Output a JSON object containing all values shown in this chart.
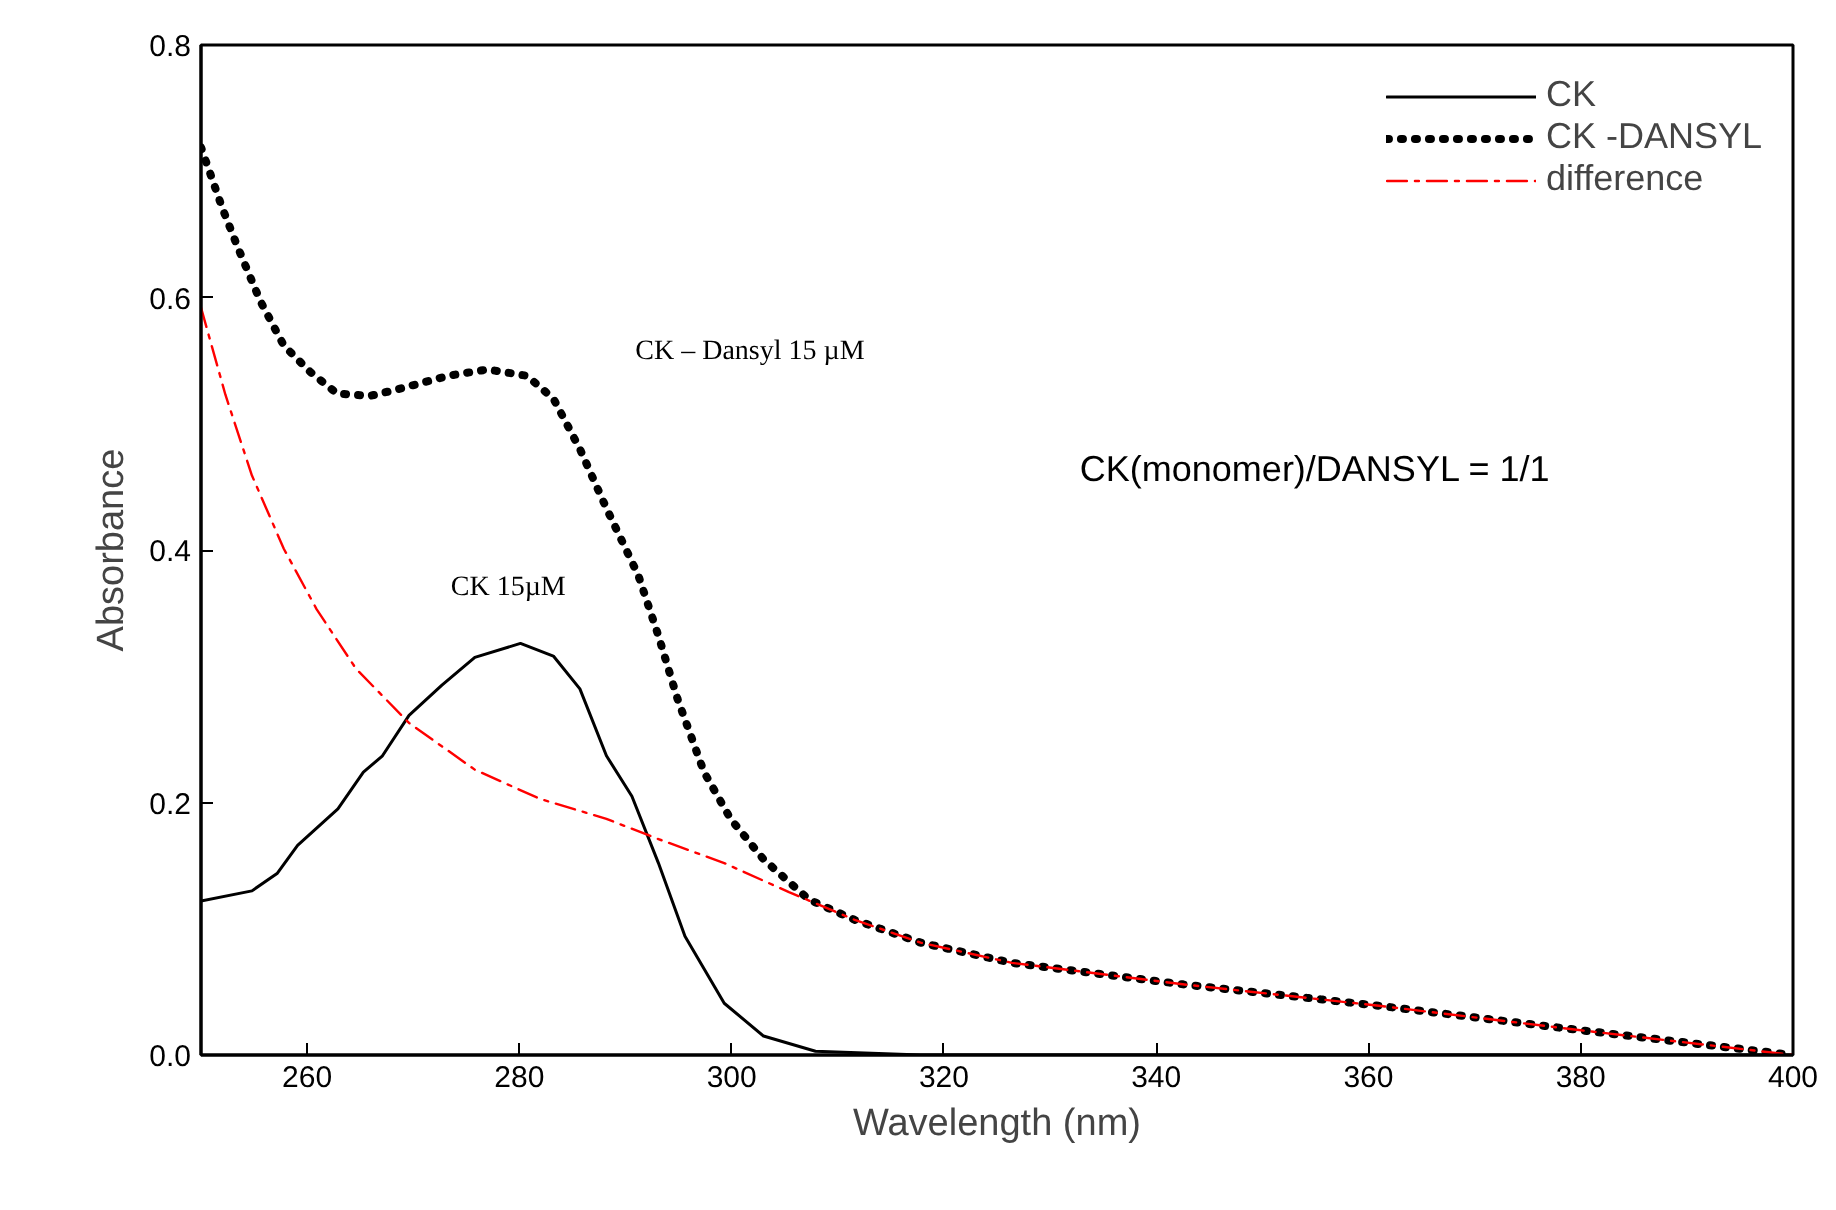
{
  "chart_data": {
    "type": "line",
    "xlabel": "Wavelength (nm)",
    "ylabel": "Absorbance",
    "xlim": [
      250,
      400
    ],
    "ylim": [
      0,
      0.8
    ],
    "xticks": [
      260,
      280,
      300,
      320,
      340,
      360,
      380,
      400
    ],
    "yticks": [
      {
        "value": 0,
        "label": "0.0"
      },
      0.2,
      0.4,
      0.6,
      0.8
    ],
    "grid": false,
    "legend": "top right",
    "series": [
      {
        "name": "CK",
        "color": "#000000",
        "line_style": "solid",
        "x": [
          250,
          254.8,
          257.2,
          259.1,
          262.9,
          265.3,
          267.1,
          269.6,
          272.7,
          275.8,
          280.1,
          283.2,
          285.7,
          288.2,
          290.6,
          293.1,
          295.6,
          299.3,
          303,
          307.9,
          317.8,
          400
        ],
        "values": [
          0.122,
          0.13,
          0.144,
          0.166,
          0.195,
          0.224,
          0.237,
          0.269,
          0.293,
          0.315,
          0.326,
          0.316,
          0.29,
          0.237,
          0.205,
          0.152,
          0.094,
          0.041,
          0.015,
          0.003,
          0.0,
          0.0
        ]
      },
      {
        "name": "CK -DANSYL",
        "color": "#000000",
        "line_style": "dotted",
        "x": [
          250,
          252,
          253.5,
          255.6,
          257.8,
          260.3,
          262.8,
          265.9,
          268.4,
          273.3,
          277,
          280.7,
          283.2,
          285.7,
          288.2,
          291.2,
          293.1,
          294.9,
          297.4,
          299.9,
          303,
          307.3,
          311.6,
          317.8,
          326.4,
          342.5,
          361,
          379.6,
          400
        ],
        "values": [
          0.719,
          0.671,
          0.639,
          0.597,
          0.562,
          0.541,
          0.524,
          0.522,
          0.527,
          0.538,
          0.543,
          0.538,
          0.52,
          0.48,
          0.433,
          0.38,
          0.332,
          0.282,
          0.224,
          0.187,
          0.155,
          0.123,
          0.107,
          0.089,
          0.073,
          0.056,
          0.039,
          0.02,
          0.0
        ]
      },
      {
        "name": "difference",
        "color": "#ff0000",
        "line_style": "dashdot",
        "x": [
          250,
          252.3,
          254.8,
          257.8,
          260.9,
          264.6,
          269.6,
          275.8,
          281.9,
          288.2,
          293.1,
          299.3,
          305.4,
          311.6,
          317.8,
          326.4,
          342.5,
          361,
          379.6,
          400
        ],
        "values": [
          0.592,
          0.523,
          0.459,
          0.401,
          0.353,
          0.306,
          0.263,
          0.226,
          0.203,
          0.187,
          0.171,
          0.152,
          0.129,
          0.107,
          0.089,
          0.073,
          0.056,
          0.039,
          0.02,
          0.0
        ]
      }
    ],
    "annotations": [
      "CK – Dansyl  15 µM",
      "CK 15µM",
      "CK(monomer)/DANSYL = 1/1"
    ]
  }
}
